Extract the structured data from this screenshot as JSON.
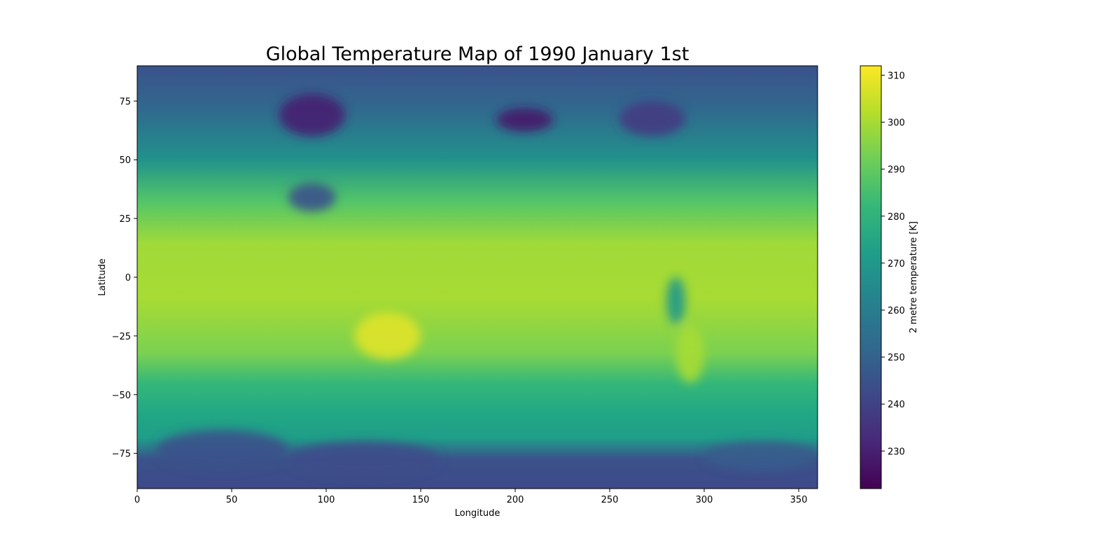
{
  "chart_data": {
    "type": "heatmap",
    "title": "Global Temperature Map of 1990 January 1st",
    "xlabel": "Longitude",
    "ylabel": "Latitude",
    "xlim": [
      0,
      360
    ],
    "ylim": [
      -90,
      90
    ],
    "x_ticks": [
      0,
      50,
      100,
      150,
      200,
      250,
      300,
      350
    ],
    "y_ticks": [
      -75,
      -50,
      -25,
      0,
      25,
      50,
      75
    ],
    "x_tick_labels": [
      "0",
      "50",
      "100",
      "150",
      "200",
      "250",
      "300",
      "350"
    ],
    "y_tick_labels": [
      "−75",
      "−50",
      "−25",
      "0",
      "25",
      "50",
      "75"
    ],
    "colormap": "viridis",
    "grid": false,
    "colorbar": {
      "label": "2 metre temperature [K]",
      "range": [
        222,
        312
      ],
      "ticks": [
        230,
        240,
        250,
        260,
        270,
        280,
        290,
        300,
        310
      ],
      "tick_labels": [
        "230",
        "240",
        "250",
        "260",
        "270",
        "280",
        "290",
        "300",
        "310"
      ]
    },
    "regions": [
      {
        "lon": [
          75,
          110
        ],
        "lat": [
          60,
          78
        ],
        "value": 230
      },
      {
        "lon": [
          190,
          220
        ],
        "lat": [
          62,
          72
        ],
        "value": 228
      },
      {
        "lon": [
          255,
          290
        ],
        "lat": [
          60,
          75
        ],
        "value": 238
      },
      {
        "lon": [
          80,
          105
        ],
        "lat": [
          28,
          40
        ],
        "value": 245
      },
      {
        "lon": [
          115,
          150
        ],
        "lat": [
          -35,
          -15
        ],
        "value": 308
      },
      {
        "lon": [
          10,
          80
        ],
        "lat": [
          -82,
          -65
        ],
        "value": 245
      },
      {
        "lon": [
          80,
          160
        ],
        "lat": [
          -85,
          -70
        ],
        "value": 243
      },
      {
        "lon": [
          300,
          360
        ],
        "lat": [
          -82,
          -70
        ],
        "value": 248
      },
      {
        "lon": [
          285,
          300
        ],
        "lat": [
          -45,
          -20
        ],
        "value": 300
      },
      {
        "lon": [
          280,
          290
        ],
        "lat": [
          -20,
          0
        ],
        "value": 270
      }
    ]
  }
}
